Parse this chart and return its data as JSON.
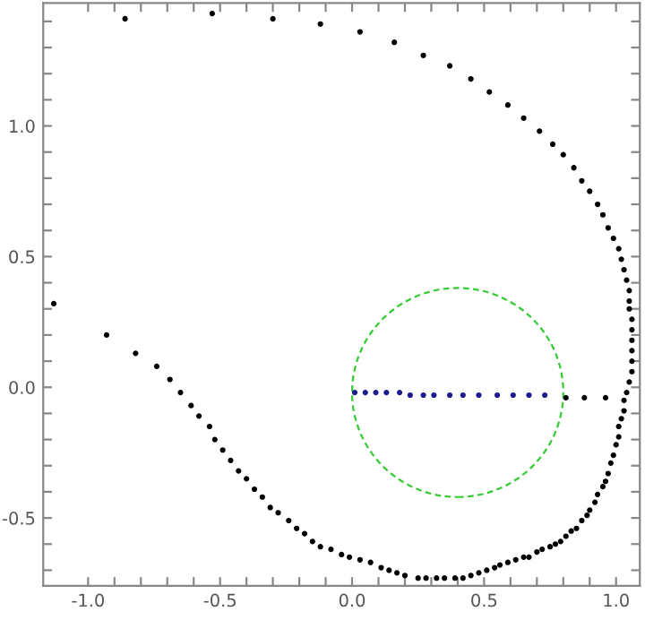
{
  "chart_data": {
    "type": "scatter",
    "xlim": [
      -1.17,
      1.09
    ],
    "ylim": [
      -0.76,
      1.47
    ],
    "grid": false,
    "marker": "circle",
    "xticks": [
      {
        "value": -1.0,
        "label": "-1.0"
      },
      {
        "value": -0.5,
        "label": "-0.5"
      },
      {
        "value": 0.0,
        "label": "0.0"
      },
      {
        "value": 0.5,
        "label": "0.5"
      },
      {
        "value": 1.0,
        "label": "1.0"
      },
      {
        "value": -0.9,
        "label": null
      },
      {
        "value": -0.8,
        "label": null
      },
      {
        "value": -0.7,
        "label": null
      },
      {
        "value": -0.6,
        "label": null
      },
      {
        "value": -0.4,
        "label": null
      },
      {
        "value": -0.3,
        "label": null
      },
      {
        "value": -0.2,
        "label": null
      },
      {
        "value": -0.1,
        "label": null
      },
      {
        "value": 0.1,
        "label": null
      },
      {
        "value": 0.2,
        "label": null
      },
      {
        "value": 0.3,
        "label": null
      },
      {
        "value": 0.4,
        "label": null
      },
      {
        "value": 0.6,
        "label": null
      },
      {
        "value": 0.7,
        "label": null
      },
      {
        "value": 0.8,
        "label": null
      },
      {
        "value": 0.9,
        "label": null
      }
    ],
    "yticks": [
      {
        "value": -0.5,
        "label": "-0.5"
      },
      {
        "value": 0.0,
        "label": "0.0"
      },
      {
        "value": 0.5,
        "label": "0.5"
      },
      {
        "value": 1.0,
        "label": "1.0"
      },
      {
        "value": -0.7,
        "label": null
      },
      {
        "value": -0.6,
        "label": null
      },
      {
        "value": -0.4,
        "label": null
      },
      {
        "value": -0.3,
        "label": null
      },
      {
        "value": -0.2,
        "label": null
      },
      {
        "value": -0.1,
        "label": null
      },
      {
        "value": 0.1,
        "label": null
      },
      {
        "value": 0.2,
        "label": null
      },
      {
        "value": 0.3,
        "label": null
      },
      {
        "value": 0.4,
        "label": null
      },
      {
        "value": 0.6,
        "label": null
      },
      {
        "value": 0.7,
        "label": null
      },
      {
        "value": 0.8,
        "label": null
      },
      {
        "value": 0.9,
        "label": null
      },
      {
        "value": 1.1,
        "label": null
      },
      {
        "value": 1.2,
        "label": null
      },
      {
        "value": 1.3,
        "label": null
      },
      {
        "value": 1.4,
        "label": null
      }
    ],
    "series": [
      {
        "color": "#000000",
        "x": [
          -0.86,
          -0.53,
          -0.3,
          -0.12,
          0.03,
          0.16,
          0.27,
          0.37,
          0.45,
          0.52,
          0.59,
          0.65,
          0.71,
          0.76,
          0.8,
          0.84,
          0.87,
          0.9,
          0.93,
          0.95,
          0.97,
          0.99,
          1.01,
          1.02,
          1.03,
          1.04,
          1.05,
          1.05,
          1.05,
          1.06,
          1.06,
          1.06,
          1.06,
          1.06,
          1.06,
          1.05,
          1.04,
          1.03,
          1.03,
          1.02,
          1.01,
          1.01,
          1.0,
          0.99,
          0.98,
          0.97,
          0.96,
          0.95,
          0.93,
          0.92,
          0.9,
          0.89,
          0.87,
          0.85,
          0.83,
          0.81,
          0.79,
          0.77,
          0.75,
          0.72,
          0.7,
          0.67,
          0.65,
          0.62,
          0.59,
          0.56,
          0.54,
          0.51,
          0.48,
          0.45,
          0.42,
          0.39,
          0.35,
          0.32,
          0.28,
          0.25,
          0.2,
          0.17,
          0.14,
          0.11,
          0.07,
          0.03,
          -0.01,
          -0.04,
          -0.08,
          -0.12,
          -0.15,
          -0.18,
          -0.21,
          -0.24,
          -0.28,
          -0.31,
          -0.34,
          -0.37,
          -0.4,
          -0.43,
          -0.46,
          -0.49,
          -0.52,
          -0.54,
          -0.58,
          -0.61,
          -0.65,
          -0.69,
          -0.74,
          -0.82,
          -0.93,
          -1.13,
          0.81,
          0.88,
          0.96
        ],
        "values": [
          1.41,
          1.43,
          1.41,
          1.39,
          1.36,
          1.32,
          1.27,
          1.23,
          1.18,
          1.13,
          1.08,
          1.03,
          0.98,
          0.93,
          0.89,
          0.84,
          0.79,
          0.75,
          0.7,
          0.66,
          0.61,
          0.57,
          0.53,
          0.49,
          0.45,
          0.41,
          0.37,
          0.33,
          0.3,
          0.26,
          0.22,
          0.18,
          0.14,
          0.1,
          0.06,
          0.02,
          -0.02,
          -0.05,
          -0.09,
          -0.12,
          -0.15,
          -0.19,
          -0.22,
          -0.26,
          -0.29,
          -0.33,
          -0.36,
          -0.38,
          -0.41,
          -0.44,
          -0.47,
          -0.49,
          -0.51,
          -0.54,
          -0.55,
          -0.57,
          -0.59,
          -0.6,
          -0.61,
          -0.62,
          -0.63,
          -0.65,
          -0.65,
          -0.66,
          -0.67,
          -0.68,
          -0.69,
          -0.7,
          -0.71,
          -0.72,
          -0.73,
          -0.73,
          -0.73,
          -0.73,
          -0.73,
          -0.73,
          -0.72,
          -0.71,
          -0.7,
          -0.69,
          -0.67,
          -0.66,
          -0.65,
          -0.64,
          -0.62,
          -0.61,
          -0.59,
          -0.56,
          -0.54,
          -0.51,
          -0.48,
          -0.46,
          -0.42,
          -0.39,
          -0.35,
          -0.32,
          -0.28,
          -0.24,
          -0.2,
          -0.15,
          -0.11,
          -0.07,
          -0.02,
          0.03,
          0.08,
          0.13,
          0.2,
          0.32,
          -0.04,
          -0.04,
          -0.04
        ]
      },
      {
        "color": "#1c1c8f",
        "x": [
          0.01,
          0.05,
          0.09,
          0.13,
          0.18,
          0.22,
          0.27,
          0.31,
          0.37,
          0.42,
          0.48,
          0.55,
          0.61,
          0.67,
          0.73
        ],
        "values": [
          -0.02,
          -0.02,
          -0.02,
          -0.02,
          -0.02,
          -0.03,
          -0.03,
          -0.03,
          -0.03,
          -0.03,
          -0.03,
          -0.03,
          -0.03,
          -0.03,
          -0.03
        ]
      }
    ]
  }
}
